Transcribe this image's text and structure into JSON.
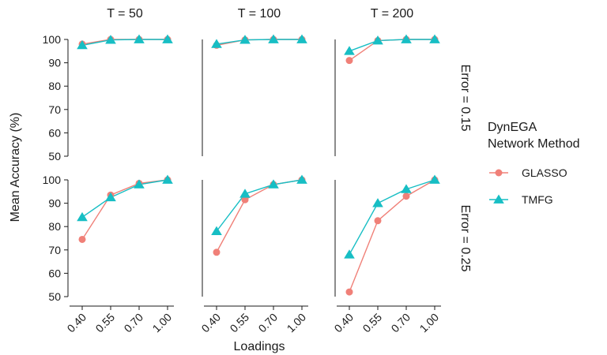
{
  "chart_data": {
    "type": "line",
    "xlabel": "Loadings",
    "ylabel": "Mean Accuracy (%)",
    "ylim": [
      50,
      100
    ],
    "y_ticks": [
      "50",
      "60",
      "70",
      "80",
      "90",
      "100"
    ],
    "categories": [
      "0.40",
      "0.55",
      "0.70",
      "1.00"
    ],
    "columns": [
      "T = 50",
      "T = 100",
      "T = 200"
    ],
    "rows": [
      "Error = 0.15",
      "Error = 0.25"
    ],
    "legend": {
      "title_line1": "DynEGA",
      "title_line2": "Network Method",
      "position": "right"
    },
    "series": [
      {
        "name": "GLASSO",
        "color": "#F08078",
        "marker": "circle"
      },
      {
        "name": "TMFG",
        "color": "#17BEC4",
        "marker": "triangle"
      }
    ],
    "panels": [
      {
        "row": 0,
        "col": 0,
        "values": {
          "GLASSO": [
            98,
            100,
            100,
            100
          ],
          "TMFG": [
            97.5,
            99.8,
            100,
            100
          ]
        }
      },
      {
        "row": 0,
        "col": 1,
        "values": {
          "GLASSO": [
            97.5,
            99.8,
            100,
            100
          ],
          "TMFG": [
            98,
            99.8,
            100,
            100
          ]
        }
      },
      {
        "row": 0,
        "col": 2,
        "values": {
          "GLASSO": [
            91,
            99.5,
            100,
            100
          ],
          "TMFG": [
            95,
            99.5,
            100,
            100
          ]
        }
      },
      {
        "row": 1,
        "col": 0,
        "values": {
          "GLASSO": [
            74.5,
            93.5,
            98.5,
            100
          ],
          "TMFG": [
            84,
            92.5,
            98,
            100
          ]
        }
      },
      {
        "row": 1,
        "col": 1,
        "values": {
          "GLASSO": [
            69,
            91.5,
            98,
            100
          ],
          "TMFG": [
            78,
            94,
            98,
            100
          ]
        }
      },
      {
        "row": 1,
        "col": 2,
        "values": {
          "GLASSO": [
            52,
            82.5,
            93,
            100
          ],
          "TMFG": [
            68,
            90,
            96,
            100
          ]
        }
      }
    ]
  }
}
